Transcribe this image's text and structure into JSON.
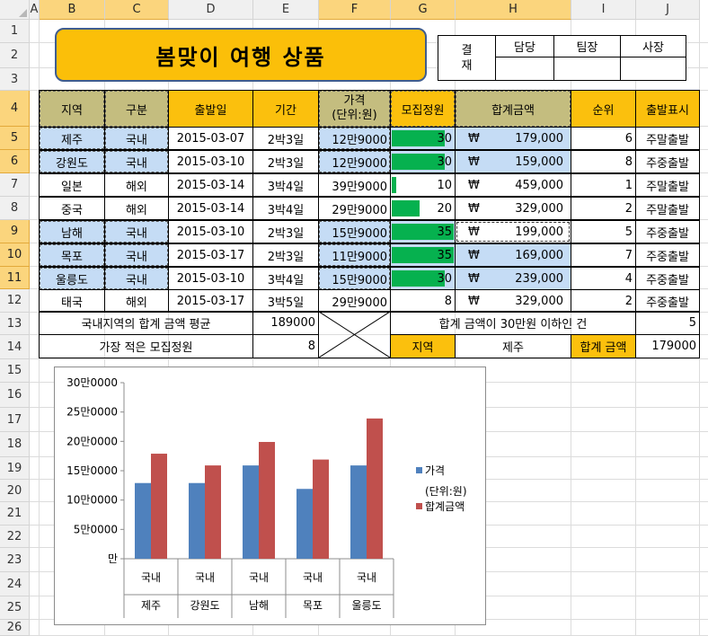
{
  "sheet": {
    "columns": [
      "A",
      "B",
      "C",
      "D",
      "E",
      "F",
      "G",
      "H",
      "I",
      "J"
    ],
    "selected_columns": [
      "B",
      "C",
      "F",
      "G",
      "H"
    ],
    "rows": [
      "1",
      "2",
      "3",
      "4",
      "5",
      "6",
      "7",
      "8",
      "9",
      "10",
      "11",
      "12",
      "13",
      "14",
      "15",
      "16",
      "17",
      "18",
      "19",
      "20",
      "21",
      "22",
      "23",
      "24",
      "25",
      "26"
    ],
    "selected_rows": [
      "4",
      "5",
      "6",
      "9",
      "10",
      "11"
    ]
  },
  "title": "봄맞이 여행 상품",
  "approval": {
    "side_label_1": "결",
    "side_label_2": "재",
    "headers": [
      "담당",
      "팀장",
      "사장"
    ]
  },
  "table": {
    "headers": {
      "region": "지역",
      "type": "구분",
      "departure": "출발일",
      "period": "기간",
      "price_line1": "가격",
      "price_line2": "(단위:원)",
      "recruit": "모집정원",
      "total": "합계금액",
      "rank": "순위",
      "label": "출발표시"
    },
    "rows": [
      {
        "region": "제주",
        "type": "국내",
        "departure": "2015-03-07",
        "period": "2박3일",
        "price": "12만9000",
        "recruit": "30",
        "recruit_fill": 0.857,
        "currency": "₩",
        "total": "179,000",
        "rank": "6",
        "label": "주말출발",
        "hl": true
      },
      {
        "region": "강원도",
        "type": "국내",
        "departure": "2015-03-10",
        "period": "2박3일",
        "price": "12만9000",
        "recruit": "30",
        "recruit_fill": 0.857,
        "currency": "₩",
        "total": "159,000",
        "rank": "8",
        "label": "주중출발",
        "hl": true
      },
      {
        "region": "일본",
        "type": "해외",
        "departure": "2015-03-14",
        "period": "3박4일",
        "price": "39만9000",
        "recruit": "10",
        "recruit_fill": 0.07,
        "currency": "₩",
        "total": "459,000",
        "rank": "1",
        "label": "주말출발",
        "hl": false
      },
      {
        "region": "중국",
        "type": "해외",
        "departure": "2015-03-14",
        "period": "3박4일",
        "price": "29만9000",
        "recruit": "20",
        "recruit_fill": 0.45,
        "currency": "₩",
        "total": "329,000",
        "rank": "2",
        "label": "주말출발",
        "hl": false
      },
      {
        "region": "남해",
        "type": "국내",
        "departure": "2015-03-10",
        "period": "2박3일",
        "price": "15만9000",
        "recruit": "35",
        "recruit_fill": 1.0,
        "currency": "₩",
        "total": "199,000",
        "rank": "5",
        "label": "주중출발",
        "hl": true
      },
      {
        "region": "목포",
        "type": "국내",
        "departure": "2015-03-17",
        "period": "2박3일",
        "price": "11만9000",
        "recruit": "35",
        "recruit_fill": 1.0,
        "currency": "₩",
        "total": "169,000",
        "rank": "7",
        "label": "주중출발",
        "hl": true
      },
      {
        "region": "울릉도",
        "type": "국내",
        "departure": "2015-03-10",
        "period": "3박4일",
        "price": "15만9000",
        "recruit": "30",
        "recruit_fill": 0.857,
        "currency": "₩",
        "total": "239,000",
        "rank": "4",
        "label": "주중출발",
        "hl": true
      },
      {
        "region": "태국",
        "type": "해외",
        "departure": "2015-03-17",
        "period": "3박5일",
        "price": "29만9000",
        "recruit": "8",
        "recruit_fill": 0.0,
        "currency": "₩",
        "total": "329,000",
        "rank": "2",
        "label": "주중출발",
        "hl": false
      }
    ]
  },
  "summary": {
    "avg_label": "국내지역의 합계 금액 평균",
    "avg_value": "189000",
    "min_label": "가장 적은 모집정원",
    "min_value": "8",
    "count_label": "합계 금액이 30만원 이하인 건",
    "count_value": "5",
    "region_label": "지역",
    "region_value": "제주",
    "total_label": "합계 금액",
    "total_value": "179000"
  },
  "chart_data": {
    "type": "bar",
    "categories": [
      {
        "line1": "국내",
        "line2": "제주"
      },
      {
        "line1": "국내",
        "line2": "강원도"
      },
      {
        "line1": "국내",
        "line2": "남해"
      },
      {
        "line1": "국내",
        "line2": "목포"
      },
      {
        "line1": "국내",
        "line2": "울릉도"
      }
    ],
    "series": [
      {
        "name_line1": "가격",
        "name_line2": "(단위:원)",
        "values": [
          129000,
          129000,
          159000,
          119000,
          159000
        ],
        "color": "#4f81bd"
      },
      {
        "name_line1": "합계금액",
        "name_line2": "",
        "values": [
          179000,
          159000,
          199000,
          169000,
          239000
        ],
        "color": "#c0504d"
      }
    ],
    "y_ticks": [
      "만",
      "5만0000",
      "10만0000",
      "15만0000",
      "20만0000",
      "25만0000",
      "30만0000"
    ],
    "ylim": [
      0,
      300000
    ],
    "grid": false,
    "legend": "right"
  }
}
